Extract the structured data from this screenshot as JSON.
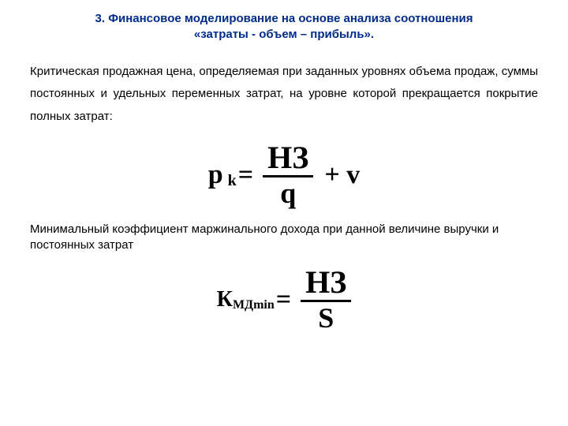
{
  "title_line1": "3. Финансовое моделирование на основе анализа соотношения",
  "title_line2": "«затраты - объем – прибыль».",
  "paragraph1": "Критическая продажная цена, определяемая при заданных уровнях объема продаж, суммы постоянных и удельных переменных затрат, на уровне которой прекращается покрытие полных затрат:",
  "paragraph2": "Минимальный коэффициент маржинального дохода при данной величине выручки и постоянных затрат",
  "formula1": {
    "lhs_main": "p",
    "lhs_sub": "k",
    "numerator": "НЗ",
    "denominator": "q",
    "tail": "+ v"
  },
  "formula2": {
    "lhs_main": "К",
    "lhs_sub": "МДmin",
    "numerator": "НЗ",
    "denominator": "S"
  },
  "colors": {
    "title": "#002b8a",
    "body": "#000000",
    "background": "#ffffff"
  }
}
